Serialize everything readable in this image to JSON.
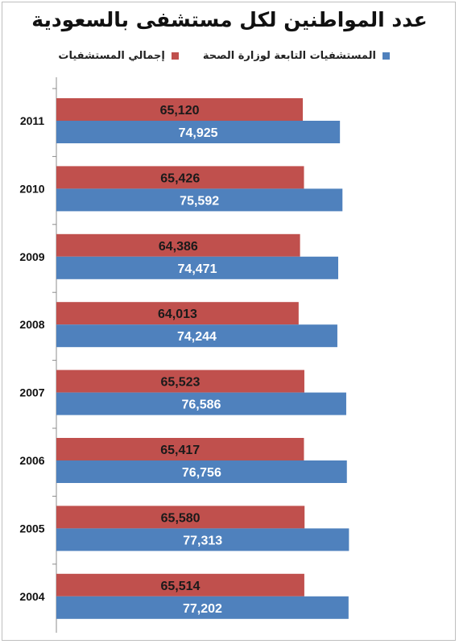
{
  "chart_data": {
    "type": "bar",
    "orientation": "horizontal",
    "title": "عدد المواطنين لكل مستشفى بالسعودية",
    "categories": [
      "2011",
      "2010",
      "2009",
      "2008",
      "2007",
      "2006",
      "2005",
      "2004"
    ],
    "series": [
      {
        "name": "إجمالي المستشفيات",
        "color": "#c0504d",
        "label_color": "#ffffff",
        "values": [
          65120,
          65426,
          64386,
          64013,
          65523,
          65417,
          65580,
          65514
        ],
        "labels": [
          "65,120",
          "65,426",
          "64,386",
          "64,013",
          "65,523",
          "65,417",
          "65,580",
          "65,514"
        ]
      },
      {
        "name": "المستشفيات التابعة لوزارة الصحة",
        "color": "#4f81bd",
        "label_color": "#ffffff",
        "values": [
          74925,
          75592,
          74471,
          74244,
          76586,
          76756,
          77313,
          77202
        ],
        "labels": [
          "74,925",
          "75,592",
          "74,471",
          "74,244",
          "76,586",
          "76,756",
          "77,313",
          "77,202"
        ]
      }
    ],
    "grid": false,
    "legend_position": "top"
  }
}
